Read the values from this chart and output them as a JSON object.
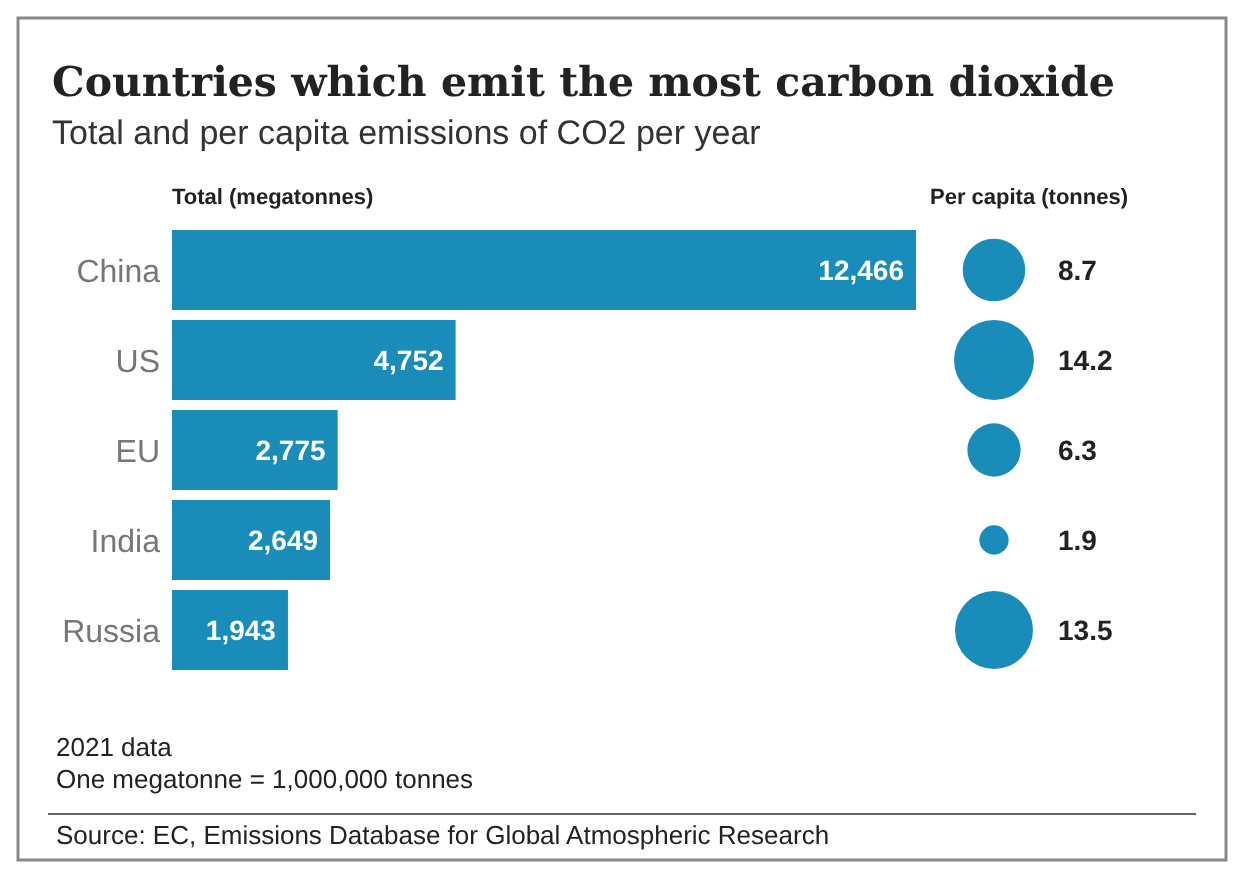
{
  "chart_data": [
    {
      "type": "bar",
      "orientation": "horizontal",
      "title": "Countries which emit the most carbon dioxide",
      "subtitle": "Total and per capita emissions of CO2 per year",
      "xlabel": "Total (megatonnes)",
      "categories": [
        "China",
        "US",
        "EU",
        "India",
        "Russia"
      ],
      "values": [
        12466,
        4752,
        2775,
        2649,
        1943
      ],
      "value_labels": [
        "12,466",
        "4,752",
        "2,775",
        "2,649",
        "1,943"
      ],
      "color": "#1a8cba",
      "annotations": [
        "2021 data",
        "One megatonne = 1,000,000 tonnes",
        "Source: EC, Emissions Database for Global Atmospheric Research"
      ]
    },
    {
      "type": "other",
      "title": "Per capita (tonnes)",
      "categories": [
        null,
        null,
        null,
        null,
        null
      ],
      "values": [
        8.7,
        14.2,
        6.3,
        1.9,
        13.5
      ],
      "color": "#1a8cba",
      "data_labels": true
    }
  ]
}
